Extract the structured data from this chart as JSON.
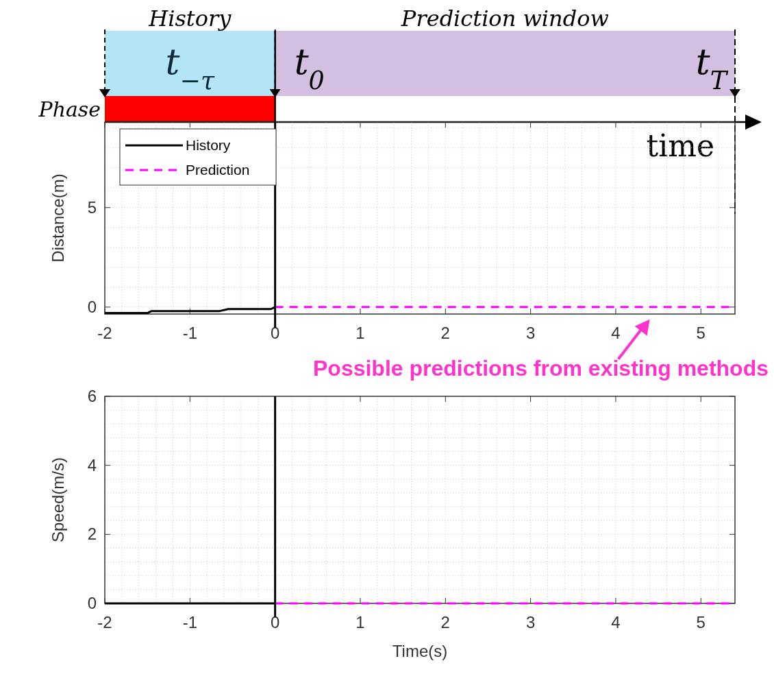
{
  "chart_data": [
    {
      "type": "line",
      "ylabel": "Distance(m)",
      "xlim": [
        -2,
        5.4
      ],
      "ylim": [
        -0.35,
        9.3
      ],
      "xticks": [
        -2,
        -1,
        0,
        1,
        2,
        3,
        4,
        5
      ],
      "yticks": [
        0,
        5
      ],
      "grid": true,
      "legend": "top left",
      "series": [
        {
          "name": "History",
          "color": "#000000",
          "line_style": "solid",
          "x": [
            -2,
            -1.5,
            -1.45,
            -0.65,
            -0.55,
            -0.05,
            0
          ],
          "values": [
            -0.3,
            -0.3,
            -0.2,
            -0.2,
            -0.1,
            -0.1,
            0
          ]
        },
        {
          "name": "Prediction",
          "color": "#ff00ff",
          "line_style": "dashed",
          "x": [
            0,
            5.4
          ],
          "values": [
            0,
            0
          ]
        }
      ],
      "ref_lines": [
        {
          "axis": "x",
          "value": 0,
          "color": "#000000"
        }
      ],
      "annotations": [
        "History",
        "Prediction window",
        "t$_{−τ}$",
        "t$_{0}$",
        "t$_{T}$",
        "Phase",
        "time",
        {
          "text": "Possible predictions from existing methods",
          "x": 4.4,
          "y": 0
        }
      ]
    },
    {
      "type": "line",
      "xlabel": "Time(s)",
      "ylabel": "Speed(m/s)",
      "xlim": [
        -2,
        5.4
      ],
      "ylim": [
        0,
        6
      ],
      "xticks": [
        -2,
        -1,
        0,
        1,
        2,
        3,
        4,
        5
      ],
      "yticks": [
        0,
        2,
        4,
        6
      ],
      "grid": true,
      "series": [
        {
          "color": "#000000",
          "line_style": "solid",
          "x": [
            -2,
            0
          ],
          "values": [
            0,
            0
          ]
        },
        {
          "color": "#ff00ff",
          "line_style": "dashed",
          "x": [
            0,
            5.4
          ],
          "values": [
            0,
            0
          ]
        }
      ],
      "ref_lines": [
        {
          "axis": "x",
          "value": 0,
          "color": "#000000"
        }
      ]
    }
  ]
}
